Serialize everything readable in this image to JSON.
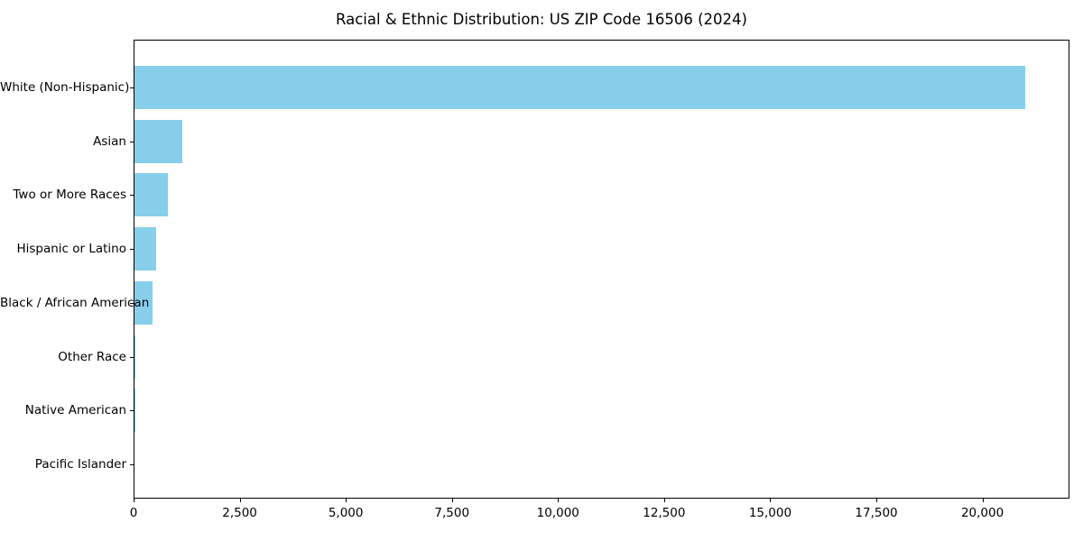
{
  "chart_data": {
    "type": "bar",
    "orientation": "horizontal",
    "title": "Racial & Ethnic Distribution: US ZIP Code 16506 (2024)",
    "categories": [
      "White (Non-Hispanic)",
      "Asian",
      "Two or More Races",
      "Hispanic or Latino",
      "Black / African American",
      "Other Race",
      "Native American",
      "Pacific Islander"
    ],
    "values": [
      21000,
      1140,
      800,
      540,
      450,
      40,
      25,
      10
    ],
    "xlabel": "",
    "ylabel": "",
    "xlim": [
      0,
      22050
    ],
    "xticks": [
      0,
      2500,
      5000,
      7500,
      10000,
      12500,
      15000,
      17500,
      20000
    ],
    "xtick_labels": [
      "0",
      "2,500",
      "5,000",
      "7,500",
      "10,000",
      "12,500",
      "15,000",
      "17,500",
      "20,000"
    ],
    "bar_color": "#87CEEB",
    "axis_color": "#000000",
    "background_color": "#FFFFFF",
    "grid": false,
    "legend": null
  }
}
